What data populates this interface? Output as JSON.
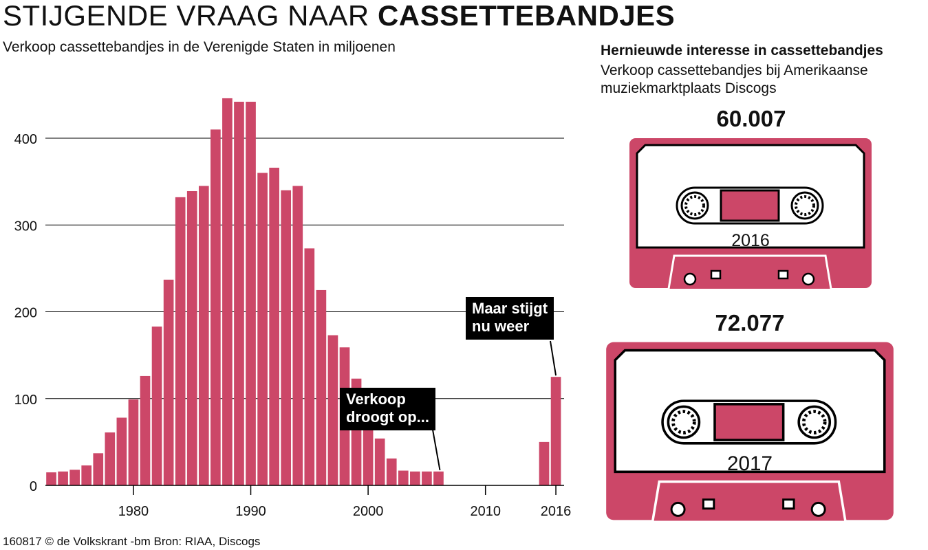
{
  "header": {
    "title_light": "STIJGENDE VRAAG NAAR",
    "title_bold": "CASSETTEBANDJES",
    "subtitle": "Verkoop cassettebandjes in de Verenigde Staten in miljoenen"
  },
  "chart_data": {
    "type": "bar",
    "title": "STIJGENDE VRAAG NAAR CASSETTEBANDJES",
    "subtitle": "Verkoop cassettebandjes in de Verenigde Staten in miljoenen",
    "categories": [
      1973,
      1974,
      1975,
      1976,
      1977,
      1978,
      1979,
      1980,
      1981,
      1982,
      1983,
      1984,
      1985,
      1986,
      1987,
      1988,
      1989,
      1990,
      1991,
      1992,
      1993,
      1994,
      1995,
      1996,
      1997,
      1998,
      1999,
      2000,
      2001,
      2002,
      2003,
      2004,
      2005,
      2006,
      2015,
      2016
    ],
    "values": [
      15,
      16,
      18,
      23,
      37,
      61,
      78,
      99,
      126,
      183,
      237,
      332,
      339,
      345,
      410,
      446,
      442,
      442,
      360,
      366,
      340,
      345,
      273,
      225,
      173,
      159,
      123,
      85,
      54,
      31,
      17,
      16,
      16,
      16,
      50,
      125
    ],
    "ylim": [
      0,
      450
    ],
    "xlim": [
      1972.5,
      2016.7
    ],
    "yticks": [
      "0",
      "100",
      "200",
      "300",
      "400"
    ],
    "xticks": [
      "1980",
      "1990",
      "2000",
      "2010",
      "2016"
    ],
    "grid": true,
    "color": "#cc4768"
  },
  "callouts": {
    "drop": [
      "Verkoop",
      "droogt op..."
    ],
    "rise": [
      "Maar stijgt",
      "nu weer"
    ]
  },
  "discogs": {
    "title": "Hernieuwde interesse in cassettebandjes",
    "subtitle": "Verkoop cassettebandjes bij Amerikaanse muziekmarktplaats Discogs",
    "items": [
      {
        "value": "60.007",
        "year": "2016"
      },
      {
        "value": "72.077",
        "year": "2017"
      }
    ],
    "color": "#cc4768"
  },
  "source": "160817 © de Volkskrant -bm Bron: RIAA, Discogs"
}
